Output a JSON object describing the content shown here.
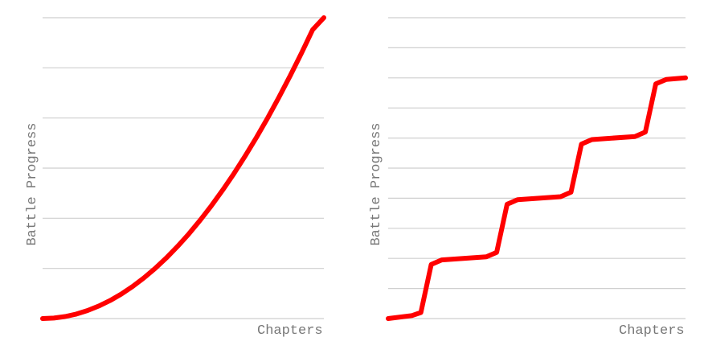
{
  "colors": {
    "series": "#ff0000",
    "grid": "#cfcfcf",
    "label": "#777777"
  },
  "chart_data": [
    {
      "type": "line",
      "xlabel": "Chapters",
      "ylabel": "Battle Progress",
      "xlim": [
        0,
        1
      ],
      "ylim": [
        0,
        6
      ],
      "grid": true,
      "ticks_labeled": false,
      "series": [
        {
          "x": [
            0,
            0.04,
            0.08,
            0.12,
            0.16,
            0.2,
            0.24,
            0.28,
            0.32,
            0.36,
            0.4,
            0.44,
            0.48,
            0.52,
            0.56,
            0.6,
            0.64,
            0.68,
            0.72,
            0.76,
            0.8,
            0.84,
            0.88,
            0.92,
            0.96,
            1.0
          ],
          "y": [
            0,
            0.01,
            0.04,
            0.09,
            0.16,
            0.25,
            0.36,
            0.49,
            0.64,
            0.81,
            1.0,
            1.21,
            1.44,
            1.69,
            1.96,
            2.25,
            2.56,
            2.89,
            3.24,
            3.61,
            4.0,
            4.41,
            4.84,
            5.29,
            5.76,
            6.0
          ]
        }
      ]
    },
    {
      "type": "line",
      "xlabel": "Chapters",
      "ylabel": "Battle Progress",
      "xlim": [
        0,
        1
      ],
      "ylim": [
        0,
        10
      ],
      "grid": true,
      "ticks_labeled": false,
      "series": [
        {
          "x": [
            0,
            0.08,
            0.11,
            0.145,
            0.18,
            0.33,
            0.365,
            0.4,
            0.435,
            0.58,
            0.615,
            0.65,
            0.685,
            0.83,
            0.865,
            0.9,
            0.935,
            1.0
          ],
          "y": [
            0,
            0.1,
            0.2,
            1.8,
            1.95,
            2.05,
            2.2,
            3.8,
            3.95,
            4.05,
            4.2,
            5.8,
            5.95,
            6.05,
            6.2,
            7.8,
            7.95,
            8.0
          ]
        }
      ]
    }
  ]
}
